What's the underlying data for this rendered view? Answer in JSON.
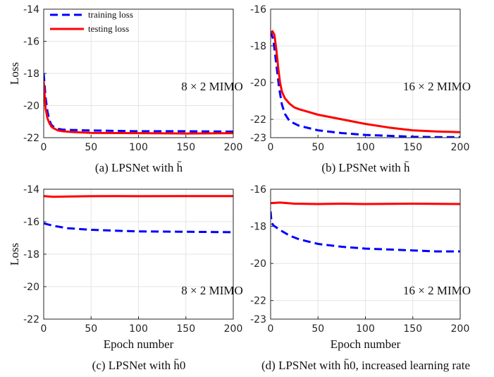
{
  "chart_data": [
    {
      "type": "line",
      "caption": "(a) LPSNet with h̄",
      "annotation": "8 × 2 MIMO",
      "xlabel": "",
      "ylabel": "Loss",
      "xlim": [
        0,
        200
      ],
      "ylim": [
        -22,
        -14
      ],
      "xticks": [
        "0",
        "50",
        "100",
        "150",
        "200"
      ],
      "yticks": [
        "-14",
        "-16",
        "-18",
        "-20",
        "-22"
      ],
      "grid": true,
      "legend": "top-left",
      "series": [
        {
          "name": "training loss",
          "color": "#0000ff",
          "style": "dashed",
          "x": [
            0,
            2,
            4,
            6,
            8,
            10,
            15,
            20,
            30,
            50,
            100,
            150,
            200
          ],
          "values": [
            -18.0,
            -19.5,
            -20.4,
            -20.9,
            -21.2,
            -21.3,
            -21.45,
            -21.5,
            -21.52,
            -21.55,
            -21.6,
            -21.6,
            -21.62
          ]
        },
        {
          "name": "testing loss",
          "color": "#ff0000",
          "style": "solid",
          "x": [
            0,
            2,
            4,
            6,
            8,
            10,
            15,
            20,
            30,
            50,
            100,
            150,
            200
          ],
          "values": [
            -18.5,
            -20.2,
            -20.8,
            -21.1,
            -21.3,
            -21.4,
            -21.55,
            -21.6,
            -21.65,
            -21.7,
            -21.72,
            -21.74,
            -21.72
          ]
        }
      ]
    },
    {
      "type": "line",
      "caption": "(b) LPSNet with h̄",
      "annotation": "16 × 2 MIMO",
      "xlabel": "",
      "ylabel": "",
      "xlim": [
        0,
        200
      ],
      "ylim": [
        -23,
        -16
      ],
      "xticks": [
        "0",
        "50",
        "100",
        "150",
        "200"
      ],
      "yticks": [
        "-16",
        "-18",
        "-20",
        "-22",
        "-23"
      ],
      "grid": true,
      "series": [
        {
          "name": "training loss",
          "color": "#0000ff",
          "style": "dashed",
          "x": [
            0,
            3,
            6,
            9,
            12,
            15,
            20,
            30,
            50,
            75,
            100,
            125,
            150,
            175,
            200
          ],
          "values": [
            -17.2,
            -17.7,
            -19.0,
            -20.3,
            -21.2,
            -21.7,
            -22.1,
            -22.35,
            -22.6,
            -22.75,
            -22.85,
            -22.9,
            -22.95,
            -22.97,
            -22.97
          ]
        },
        {
          "name": "testing loss",
          "color": "#ff0000",
          "style": "solid",
          "x": [
            0,
            2,
            4,
            6,
            8,
            10,
            12,
            15,
            20,
            25,
            30,
            40,
            50,
            75,
            100,
            125,
            150,
            175,
            200
          ],
          "values": [
            -17.3,
            -17.2,
            -17.4,
            -18.2,
            -19.2,
            -20.0,
            -20.5,
            -20.85,
            -21.15,
            -21.35,
            -21.45,
            -21.6,
            -21.75,
            -22.0,
            -22.25,
            -22.45,
            -22.6,
            -22.66,
            -22.7
          ]
        }
      ]
    },
    {
      "type": "line",
      "caption": "(c) LPSNet with h̄0",
      "annotation": "8 × 2 MIMO",
      "xlabel": "Epoch number",
      "ylabel": "Loss",
      "xlim": [
        0,
        200
      ],
      "ylim": [
        -22,
        -14
      ],
      "xticks": [
        "0",
        "50",
        "100",
        "150",
        "200"
      ],
      "yticks": [
        "-14",
        "-16",
        "-18",
        "-20",
        "-22"
      ],
      "grid": true,
      "series": [
        {
          "name": "training loss",
          "color": "#0000ff",
          "style": "dashed",
          "x": [
            0,
            10,
            25,
            50,
            75,
            100,
            150,
            200
          ],
          "values": [
            -16.1,
            -16.25,
            -16.4,
            -16.5,
            -16.55,
            -16.6,
            -16.62,
            -16.65
          ]
        },
        {
          "name": "testing loss",
          "color": "#ff0000",
          "style": "solid",
          "x": [
            0,
            10,
            25,
            50,
            75,
            100,
            150,
            200
          ],
          "values": [
            -14.42,
            -14.47,
            -14.45,
            -14.43,
            -14.42,
            -14.43,
            -14.42,
            -14.42
          ]
        }
      ]
    },
    {
      "type": "line",
      "caption": "(d) LPSNet with h̄0, increased learning rate",
      "annotation": "16 × 2 MIMO",
      "xlabel": "Epoch number",
      "ylabel": "",
      "xlim": [
        0,
        200
      ],
      "ylim": [
        -23,
        -16
      ],
      "xticks": [
        "0",
        "50",
        "100",
        "150",
        "200"
      ],
      "yticks": [
        "-16",
        "-18",
        "-20",
        "-22",
        "-23"
      ],
      "grid": true,
      "series": [
        {
          "name": "training loss",
          "color": "#0000ff",
          "style": "dashed",
          "x": [
            0,
            1,
            3,
            10,
            20,
            30,
            50,
            75,
            100,
            125,
            150,
            175,
            200
          ],
          "values": [
            -17.2,
            -17.8,
            -17.95,
            -18.2,
            -18.5,
            -18.7,
            -18.95,
            -19.1,
            -19.2,
            -19.25,
            -19.3,
            -19.35,
            -19.35
          ]
        },
        {
          "name": "testing loss",
          "color": "#ff0000",
          "style": "solid",
          "x": [
            0,
            10,
            25,
            50,
            75,
            100,
            150,
            200
          ],
          "values": [
            -16.75,
            -16.72,
            -16.78,
            -16.8,
            -16.78,
            -16.8,
            -16.78,
            -16.8
          ]
        }
      ]
    }
  ]
}
